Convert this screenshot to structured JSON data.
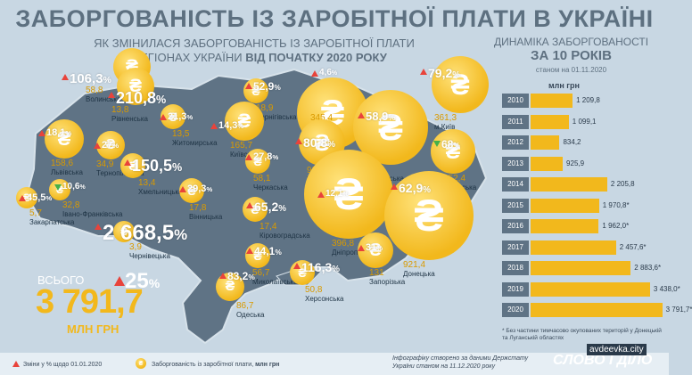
{
  "title": "ЗАБОРГОВАНІСТЬ ІЗ ЗАРОБІТНОЇ ПЛАТИ В УКРАЇНІ",
  "subtitle_line1": "ЯК ЗМІНИЛАСЯ ЗАБОРГОВАНІСТЬ ІЗ ЗАРОБІТНОЇ ПЛАТИ",
  "subtitle_line2_a": "В РЕГІОНАХ УКРАЇНИ",
  "subtitle_line2_b": "ВІД ПОЧАТКУ 2020 РОКУ",
  "colors": {
    "accent": "#f2b81c",
    "map": "#5f7385",
    "up": "#e8433b",
    "down": "#46b04a"
  },
  "total": {
    "label": "ВСЬОГО",
    "value": "3 791,7",
    "unit": "МЛН ГРН",
    "change": "25",
    "pct_sign": "%"
  },
  "regions": [
    {
      "name": "Волинська",
      "pct": "106,3",
      "value": "58,8",
      "dir": "up"
    },
    {
      "name": "Рівненська",
      "pct": "210,8",
      "value": "13,8",
      "dir": "up"
    },
    {
      "name": "Житомирська",
      "pct": "21,3",
      "value": "13,5",
      "dir": "up"
    },
    {
      "name": "Чернігівська",
      "pct": "52,9",
      "value": "18,9",
      "dir": "up"
    },
    {
      "name": "Сумська",
      "pct": "4,6",
      "value": "345,4",
      "dir": "up"
    },
    {
      "name": "м.Київ",
      "pct": "79,2",
      "value": "361,3",
      "dir": "up"
    },
    {
      "name": "Київська",
      "pct": "14,3",
      "value": "165,7",
      "dir": "up"
    },
    {
      "name": "Львівська",
      "pct": "18,1",
      "value": "158,6",
      "dir": "up"
    },
    {
      "name": "Тернопільська",
      "pct": "27",
      "value": "34,9",
      "dir": "up"
    },
    {
      "name": "Хмельницька",
      "pct": "150,5",
      "value": "13,4",
      "dir": "up"
    },
    {
      "name": "Черкаська",
      "pct": "27,8",
      "value": "58,1",
      "dir": "up"
    },
    {
      "name": "Полтавська",
      "pct": "80,8",
      "value": "92,9",
      "dir": "up"
    },
    {
      "name": "Харківська",
      "pct": "58,9",
      "value": "583",
      "dir": "up"
    },
    {
      "name": "Луганська",
      "pct": "68",
      "value": "152,4",
      "dir": "down"
    },
    {
      "name": "Закарпатська",
      "pct": "45,5",
      "value": "5,7",
      "dir": "up"
    },
    {
      "name": "Івано-Франківська",
      "pct": "10,6",
      "value": "32,8",
      "dir": "down"
    },
    {
      "name": "Вінницька",
      "pct": "29,3",
      "value": "17,8",
      "dir": "up"
    },
    {
      "name": "Кіровоградська",
      "pct": "65,2",
      "value": "17,4",
      "dir": "up"
    },
    {
      "name": "Дніпропетровська",
      "pct": "12,1",
      "value": "396,8",
      "dir": "up"
    },
    {
      "name": "Донецька",
      "pct": "62,9",
      "value": "921,4",
      "dir": "up"
    },
    {
      "name": "Чернівецька",
      "pct": "2 668,5",
      "value": "3,9",
      "dir": "up"
    },
    {
      "name": "Миколаївська",
      "pct": "44,1",
      "value": "56,7",
      "dir": "up"
    },
    {
      "name": "Херсонська",
      "pct": "116,3",
      "value": "50,8",
      "dir": "up"
    },
    {
      "name": "Запорізька",
      "pct": "31",
      "value": "131",
      "dir": "up"
    },
    {
      "name": "Одеська",
      "pct": "83,2",
      "value": "86,7",
      "dir": "up"
    }
  ],
  "dynamics": {
    "title1": "ДИНАМІКА ЗАБОРГОВАНОСТІ",
    "title2": "ЗА 10 РОКІВ",
    "asof": "станом на 01.11.2020",
    "unit": "млн грн",
    "note": "* Без частини тимчасово окупованих територій у Донецькій та Луганській областях"
  },
  "chart_data": {
    "type": "bar",
    "title": "ДИНАМІКА ЗАБОРГОВАНОСТІ ЗА 10 РОКІВ",
    "ylabel": "млн грн",
    "categories": [
      "2010",
      "2011",
      "2012",
      "2013",
      "2014",
      "2015",
      "2016",
      "2017",
      "2018",
      "2019",
      "2020"
    ],
    "values": [
      1209.8,
      1099.1,
      834.2,
      925.9,
      2205.8,
      1970.8,
      1962.0,
      2457.6,
      2883.6,
      3438.0,
      3791.7
    ],
    "labels": [
      "1 209,8",
      "1 099,1",
      "834,2",
      "925,9",
      "2 205,8",
      "1 970,8*",
      "1 962,0*",
      "2 457,6*",
      "2 883,6*",
      "3 438,0*",
      "3 791,7*"
    ],
    "xlim": [
      0,
      3800
    ]
  },
  "footer": {
    "legend_change": "Зміни у % щодо 01.01.2020",
    "legend_debt": "Заборгованість із заробітної плати,",
    "legend_unit": "млн грн",
    "source1": "Інфографіку створено за даними Держстату",
    "source2": "України станом на 11.12.2020 року",
    "brand": "СЛОВО І ДІЛО",
    "watermark": "avdeevka.city"
  }
}
